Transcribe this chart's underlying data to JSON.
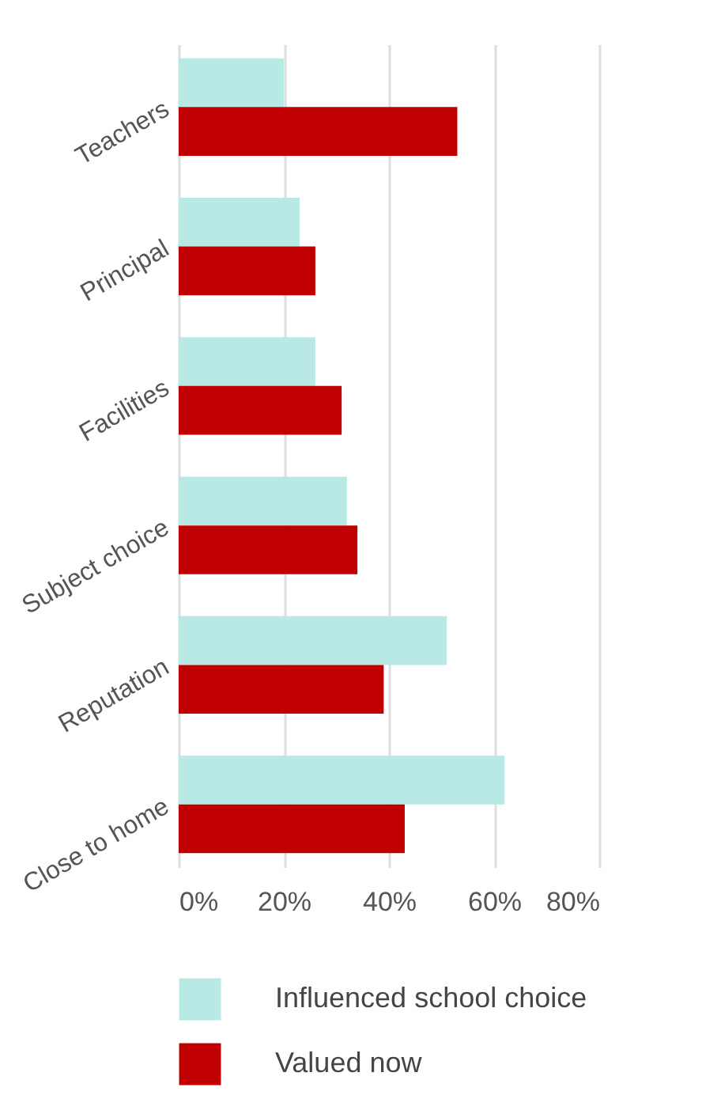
{
  "chart_data": {
    "type": "bar",
    "orientation": "horizontal",
    "categories": [
      "Teachers",
      "Principal",
      "Facilities",
      "Subject choice",
      "Reputation",
      "Close to home"
    ],
    "series": [
      {
        "name": "Influenced school choice",
        "color": "#b9e9e4",
        "values": [
          20,
          23,
          26,
          32,
          51,
          62
        ]
      },
      {
        "name": "Valued now",
        "color": "#c00000",
        "values": [
          53,
          26,
          31,
          34,
          39,
          43
        ]
      }
    ],
    "xlim": [
      0,
      80
    ],
    "xticks": [
      {
        "value": 0,
        "label": "0%"
      },
      {
        "value": 20,
        "label": "20%"
      },
      {
        "value": 40,
        "label": "40%"
      },
      {
        "value": 60,
        "label": "60%"
      },
      {
        "value": 80,
        "label": "80%"
      }
    ],
    "grid": "x",
    "legend": "bottom"
  }
}
